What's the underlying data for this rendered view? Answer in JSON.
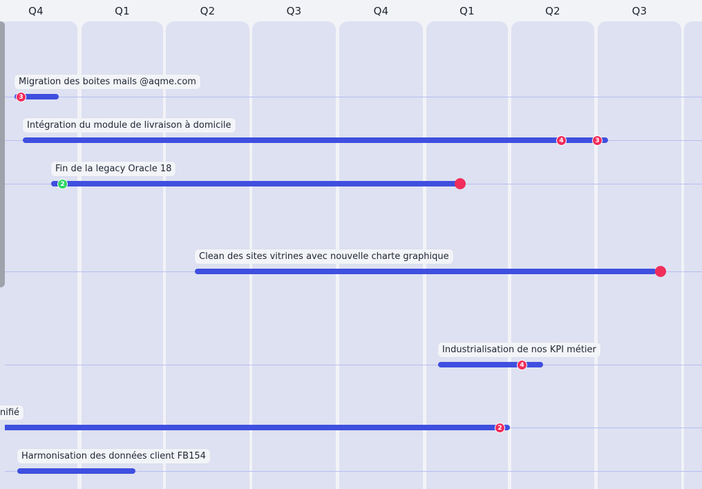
{
  "timeline": {
    "quarters": [
      "Q4",
      "Q1",
      "Q2",
      "Q3",
      "Q4",
      "Q1",
      "Q2",
      "Q3"
    ]
  },
  "rows": [
    {
      "label": "Migration des boites mails @aqme.com",
      "badges": [
        {
          "value": "3",
          "color": "#f02d5b"
        }
      ]
    },
    {
      "label": "Intégration du module de livraison à domicile",
      "badges": [
        {
          "value": "4",
          "color": "#f02d5b"
        },
        {
          "value": "3",
          "color": "#f02d5b"
        }
      ]
    },
    {
      "label": "Fin de la legacy Oracle 18",
      "badges": [
        {
          "value": "2",
          "color": "#2fd564"
        }
      ],
      "end_marker_color": "#f02d5b"
    },
    {
      "label": "Clean des sites vitrines avec nouvelle charte graphique",
      "end_marker_color": "#f02d5b"
    },
    {
      "label": "Industrialisation de nos KPI métier",
      "badges": [
        {
          "value": "4",
          "color": "#f02d5b"
        }
      ]
    },
    {
      "label": "nifié",
      "badges": [
        {
          "value": "2",
          "color": "#f02d5b"
        }
      ]
    },
    {
      "label": "Harmonisation des données client FB154"
    }
  ],
  "colors": {
    "bar": "#3f4fdf",
    "column": "#dde1f1",
    "guide": "#b7bdf0",
    "alert": "#f02d5b",
    "success": "#2fd564"
  }
}
